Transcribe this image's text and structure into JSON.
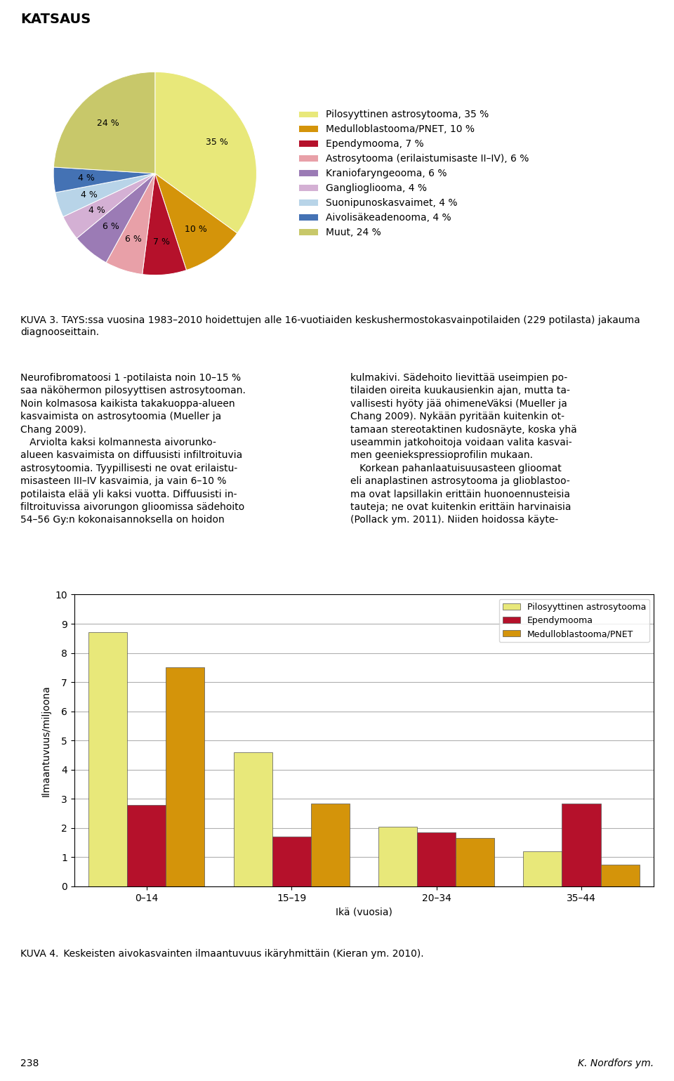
{
  "annotations": [
    "KATSAUS",
    "Neurofibromatoosi 1 -potilaista noin 10–15 %\nsaa näköhermon pilosyyttisen astrosytooman.\nNoin kolmasosa kaikista takakuoppa-alueen\nkasvaimista on astrosytoomia (Mueller ja\nChang 2009).\n   Arviolta kaksi kolmannesta aivorunko-\nalueen kasvaimista on diffuusisti infiltroituvia\nastrosytoomia. Tyypillisesti ne ovat erilaistu-\nmisasteen III–IV kasvaimia, ja vain 6–10 %\npotilaista elää yli kaksi vuotta. Diffuusisti in-\nfiltroituvissa aivorungon glioomissa sädehoito\n54–56 Gy:n kokonaisannoksella on hoidon",
    "kulmakivi. Sädehoito lievittää useimpien po-\ntilaiden oireita kuukausienkin ajan, mutta ta-\nvallisesti hyöty jää ohimeneVäksi (Mueller ja\nChang 2009). Nykään pyritään kuitenkin ot-\ntamaan stereotaktinen kudosnäyte, koska yhä\nuseammin jatkohoitoja voidaan valita kasvai-\nmen geeniekspressioprofilin mukaan.\n   Korkean pahanlaatuisuusasteen glioomat\neli anaplastinen astrosytooma ja glioblastoo-\nma ovat lapsillakin erittäin huonoennusteisia\ntauteja; ne ovat kuitenkin erittäin harvinaisia\n(Pollack ym. 2011). Niiden hoidossa käyte-",
    "238",
    "K. Nordfors ym."
  ],
  "chart_data": [
    {
      "type": "pie",
      "categories": [
        "Pilosyyttinen astrosytooma, 35 %",
        "Medulloblastooma/PNET, 10 %",
        "Ependymooma, 7 %",
        "Astrosytooma (erilaistumisaste II–IV), 6 %",
        "Kraniofaryngeooma, 6 %",
        "Gangliogliooma, 4 %",
        "Suonipunoskasvaimet, 4 %",
        "Aivolisäkeadenooma, 4 %",
        "Muut, 24 %"
      ],
      "values": [
        35,
        10,
        7,
        6,
        6,
        4,
        4,
        4,
        24
      ],
      "value_labels": [
        "35 %",
        "10 %",
        "7 %",
        "6 %",
        "6 %",
        "4 %",
        "4 %",
        "4 %",
        "24 %"
      ],
      "colors": [
        "#E8E87A",
        "#D4940A",
        "#B5112B",
        "#E8A0A8",
        "#9B7BB5",
        "#D4B0D4",
        "#B8D4E8",
        "#4472B4",
        "#C8C86A"
      ],
      "data_labels": true,
      "legend": "right",
      "annotations": [
        "KUVA 3. TAYS:ssa vuosina 1983–2010 hoidettujen alle 16-vuotiaiden keskushermostokasvainpotilaiden (229 potilasta) jakauma diagnooseittain."
      ]
    },
    {
      "type": "bar",
      "categories": [
        "0–14",
        "15–19",
        "20–34",
        "35–44"
      ],
      "series": [
        {
          "name": "Pilosyyttinen astrosytooma",
          "color": "#E8E87A",
          "values": [
            8.7,
            4.6,
            2.05,
            1.2
          ]
        },
        {
          "name": "Ependymooma",
          "color": "#B5112B",
          "values": [
            2.8,
            1.7,
            1.85,
            2.85
          ]
        },
        {
          "name": "Medulloblastooma/PNET",
          "color": "#D4940A",
          "values": [
            7.5,
            2.85,
            1.65,
            0.75
          ]
        }
      ],
      "x_label": "Ikä (vuosia)",
      "y_label": "Ilmaantuvuus/miljoona",
      "ylim": [
        0,
        10
      ],
      "yticks": [
        0,
        1,
        2,
        3,
        4,
        5,
        6,
        7,
        8,
        9,
        10
      ],
      "grid": true,
      "legend": "upper right",
      "annotations": [
        "KUVA 4. Keskeisten aivokasvainten ilmaantuvuus ikäryhmittäin (Kieran ym. 2010)."
      ]
    }
  ]
}
